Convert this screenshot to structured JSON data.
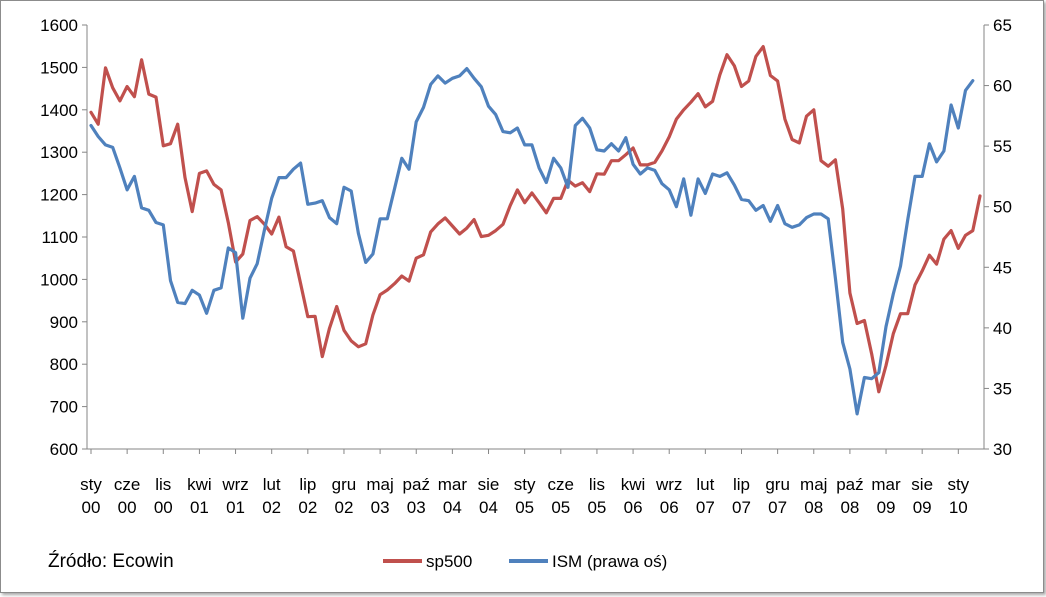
{
  "chart_data": {
    "type": "line",
    "source_label": "Źródło: Ecowin",
    "left_axis": {
      "min": 600,
      "max": 1600,
      "step": 100,
      "ticks": [
        "600",
        "700",
        "800",
        "900",
        "1000",
        "1100",
        "1200",
        "1300",
        "1400",
        "1500",
        "1600"
      ]
    },
    "right_axis": {
      "min": 30,
      "max": 65,
      "step": 5,
      "ticks": [
        "30",
        "35",
        "40",
        "45",
        "50",
        "55",
        "60",
        "65"
      ]
    },
    "x_ticks": [
      {
        "m": 0,
        "l1": "sty",
        "l2": "00"
      },
      {
        "m": 5,
        "l1": "cze",
        "l2": "00"
      },
      {
        "m": 10,
        "l1": "lis",
        "l2": "00"
      },
      {
        "m": 15,
        "l1": "kwi",
        "l2": "01"
      },
      {
        "m": 20,
        "l1": "wrz",
        "l2": "01"
      },
      {
        "m": 25,
        "l1": "lut",
        "l2": "02"
      },
      {
        "m": 30,
        "l1": "lip",
        "l2": "02"
      },
      {
        "m": 35,
        "l1": "gru",
        "l2": "02"
      },
      {
        "m": 40,
        "l1": "maj",
        "l2": "03"
      },
      {
        "m": 45,
        "l1": "paź",
        "l2": "03"
      },
      {
        "m": 50,
        "l1": "mar",
        "l2": "04"
      },
      {
        "m": 55,
        "l1": "sie",
        "l2": "04"
      },
      {
        "m": 60,
        "l1": "sty",
        "l2": "05"
      },
      {
        "m": 65,
        "l1": "cze",
        "l2": "05"
      },
      {
        "m": 70,
        "l1": "lis",
        "l2": "05"
      },
      {
        "m": 75,
        "l1": "kwi",
        "l2": "06"
      },
      {
        "m": 80,
        "l1": "wrz",
        "l2": "06"
      },
      {
        "m": 85,
        "l1": "lut",
        "l2": "07"
      },
      {
        "m": 90,
        "l1": "lip",
        "l2": "07"
      },
      {
        "m": 95,
        "l1": "gru",
        "l2": "07"
      },
      {
        "m": 100,
        "l1": "maj",
        "l2": "08"
      },
      {
        "m": 105,
        "l1": "paź",
        "l2": "08"
      },
      {
        "m": 110,
        "l1": "mar",
        "l2": "09"
      },
      {
        "m": 115,
        "l1": "sie",
        "l2": "09"
      },
      {
        "m": 120,
        "l1": "sty",
        "l2": "10"
      }
    ],
    "grid": false,
    "legend_position": "bottom",
    "series": [
      {
        "name": "sp500",
        "axis": "left",
        "color": "#c0504d",
        "values": [
          1394,
          1366,
          1499,
          1452,
          1421,
          1455,
          1431,
          1518,
          1437,
          1430,
          1315,
          1320,
          1366,
          1240,
          1160,
          1250,
          1256,
          1224,
          1211,
          1134,
          1041,
          1060,
          1139,
          1148,
          1130,
          1107,
          1147,
          1077,
          1067,
          990,
          912,
          913,
          818,
          885,
          936,
          880,
          855,
          841,
          848,
          916,
          964,
          975,
          990,
          1008,
          996,
          1050,
          1058,
          1112,
          1131,
          1145,
          1126,
          1107,
          1121,
          1141,
          1101,
          1104,
          1115,
          1130,
          1174,
          1211,
          1181,
          1204,
          1181,
          1157,
          1191,
          1191,
          1234,
          1220,
          1228,
          1207,
          1249,
          1248,
          1280,
          1280,
          1294,
          1310,
          1270,
          1270,
          1276,
          1303,
          1336,
          1378,
          1400,
          1418,
          1438,
          1407,
          1420,
          1482,
          1530,
          1504,
          1455,
          1468,
          1526,
          1549,
          1481,
          1468,
          1378,
          1330,
          1322,
          1385,
          1400,
          1280,
          1267,
          1282,
          1166,
          968,
          896,
          903,
          825,
          735,
          797,
          872,
          919,
          919,
          987,
          1020,
          1057,
          1036,
          1095,
          1115,
          1073,
          1104,
          1115,
          1197
        ]
      },
      {
        "name": "ISM (prawa oś)",
        "axis": "right",
        "color": "#4f81bd",
        "values": [
          56.7,
          55.8,
          55.1,
          54.9,
          53.2,
          51.4,
          52.5,
          49.9,
          49.7,
          48.7,
          48.5,
          43.9,
          42.1,
          42.0,
          43.1,
          42.7,
          41.2,
          43.1,
          43.3,
          46.6,
          46.2,
          40.8,
          44.1,
          45.3,
          48.1,
          50.7,
          52.4,
          52.4,
          53.1,
          53.6,
          50.2,
          50.3,
          50.5,
          49.1,
          48.6,
          51.6,
          51.3,
          47.8,
          45.4,
          46.1,
          49.0,
          49.0,
          51.5,
          54.0,
          53.1,
          57.0,
          58.2,
          60.1,
          60.8,
          60.2,
          60.6,
          60.8,
          61.4,
          60.6,
          59.9,
          58.3,
          57.6,
          56.2,
          56.1,
          56.5,
          55.1,
          55.1,
          53.2,
          52.0,
          54.0,
          53.2,
          51.6,
          56.7,
          57.3,
          56.5,
          54.7,
          54.6,
          55.2,
          54.6,
          55.7,
          53.5,
          52.7,
          53.2,
          53.0,
          51.9,
          51.4,
          50.0,
          52.3,
          49.3,
          52.3,
          51.1,
          52.7,
          52.5,
          52.8,
          51.8,
          50.6,
          50.5,
          49.7,
          50.1,
          48.8,
          50.1,
          48.6,
          48.3,
          48.5,
          49.1,
          49.4,
          49.4,
          49.0,
          44.1,
          38.8,
          36.6,
          32.9,
          35.9,
          35.8,
          36.3,
          40.1,
          42.8,
          45.1,
          48.9,
          52.5,
          52.5,
          55.2,
          53.7,
          54.6,
          58.4,
          56.5,
          59.6,
          60.4
        ]
      }
    ]
  }
}
